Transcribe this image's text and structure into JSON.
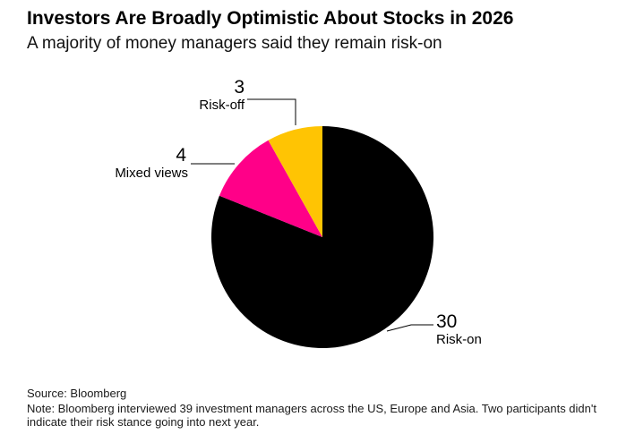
{
  "header": {
    "title": "Investors Are Broadly Optimistic About Stocks in 2026",
    "subtitle": "A majority of money managers said they remain risk-on"
  },
  "chart_data": {
    "type": "pie",
    "title": "Investors Are Broadly Optimistic About Stocks in 2026",
    "subtitle": "A majority of money managers said they remain risk-on",
    "total": 37,
    "start_angle_deg": 0,
    "direction": "clockwise",
    "legend_position": "none",
    "labeling": "external-callouts-with-leader-lines",
    "segments": [
      {
        "label": "Risk-on",
        "value": 30,
        "color": "#000000"
      },
      {
        "label": "Mixed views",
        "value": 4,
        "color": "#FF0088"
      },
      {
        "label": "Risk-off",
        "value": 3,
        "color": "#FFC403"
      }
    ]
  },
  "footer": {
    "source": "Source: Bloomberg",
    "note": "Note: Bloomberg interviewed 39 investment managers across the US, Europe and Asia. Two participants didn't indicate their risk stance going into next year."
  }
}
